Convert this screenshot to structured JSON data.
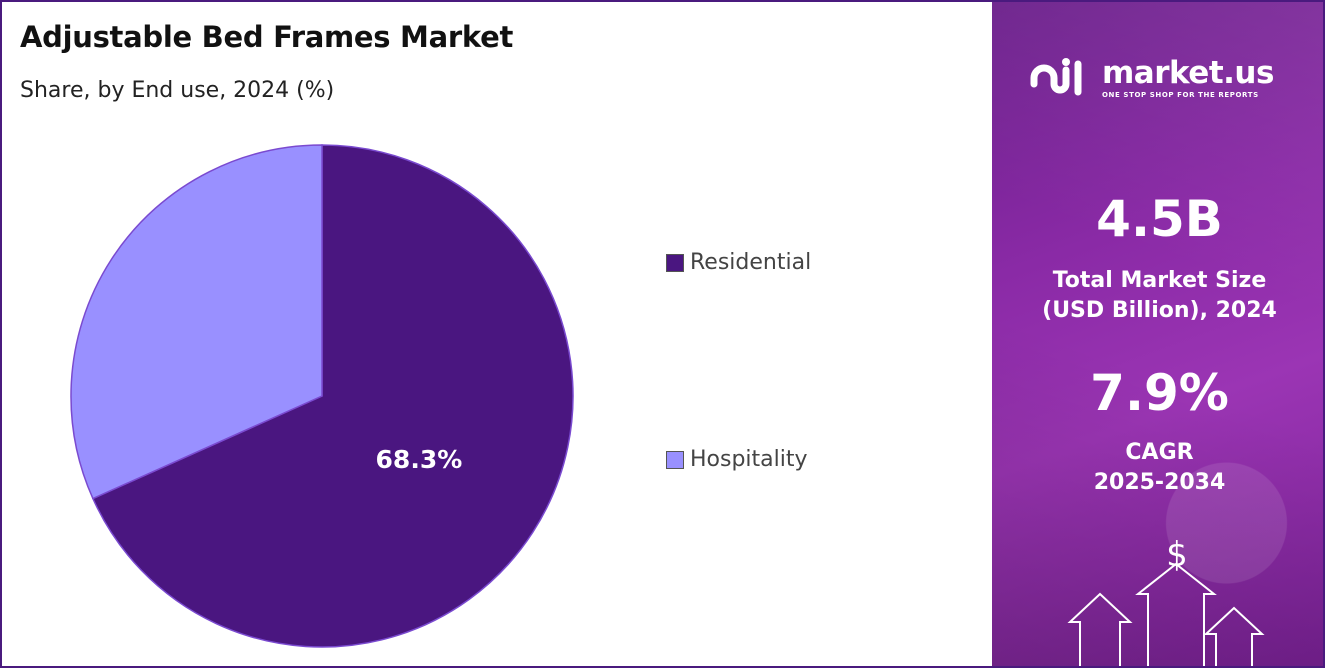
{
  "title": "Adjustable Bed Frames Market",
  "subtitle": "Share, by End use, 2024 (%)",
  "chart_data": {
    "type": "pie",
    "title": "Adjustable Bed Frames Market",
    "subtitle": "Share, by End use, 2024 (%)",
    "categories": [
      "Residential",
      "Hospitality"
    ],
    "values": [
      68.3,
      31.7
    ],
    "data_labels": [
      "68.3%",
      ""
    ],
    "colors": [
      "#4a1680",
      "#9990ff"
    ],
    "legend_placement": "right"
  },
  "legend": [
    {
      "label": "Residential",
      "color": "#4a1680"
    },
    {
      "label": "Hospitality",
      "color": "#9990ff"
    }
  ],
  "panel": {
    "brand_name": "market.us",
    "brand_tagline": "ONE STOP SHOP FOR THE REPORTS",
    "market_size_value": "4.5B",
    "market_size_label_line1": "Total Market Size",
    "market_size_label_line2": "(USD Billion), 2024",
    "cagr_value": "7.9%",
    "cagr_label_line1": "CAGR",
    "cagr_label_line2": "2025-2034",
    "dollar_symbol": "$",
    "background_color": "#8a2aa6"
  }
}
